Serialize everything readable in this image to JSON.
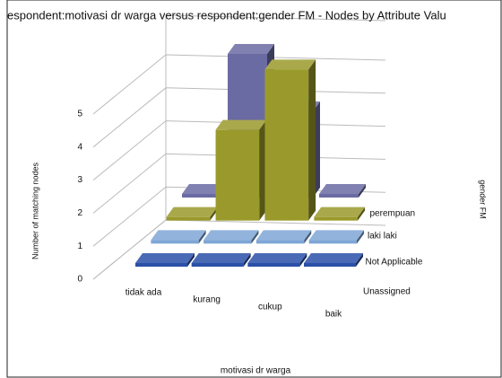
{
  "chart_data": {
    "type": "bar3d",
    "title": "espondent:motivasi dr warga versus respondent:gender FM - Nodes by Attribute Valu",
    "x_label": "motivasi dr warga",
    "y_label": "Number of matching nodes",
    "z_label": "gender FM",
    "categories": [
      "tidak ada",
      "kurang",
      "cukup",
      "baik"
    ],
    "series": [
      {
        "name": "Unassigned",
        "color": "#2a50a8",
        "values": [
          0,
          0,
          0,
          0
        ]
      },
      {
        "name": "Not Applicable",
        "color": "#7ea6d6",
        "values": [
          0,
          0,
          0,
          0
        ]
      },
      {
        "name": "laki laki",
        "color": "#9a9a2c",
        "values": [
          0,
          3,
          5,
          0
        ]
      },
      {
        "name": "perempuan",
        "color": "#6b6ba3",
        "values": [
          0,
          5,
          3,
          0
        ]
      }
    ],
    "ylim": [
      0,
      5
    ],
    "yticks": [
      0,
      1,
      2,
      3,
      4,
      5
    ],
    "grid": true
  }
}
